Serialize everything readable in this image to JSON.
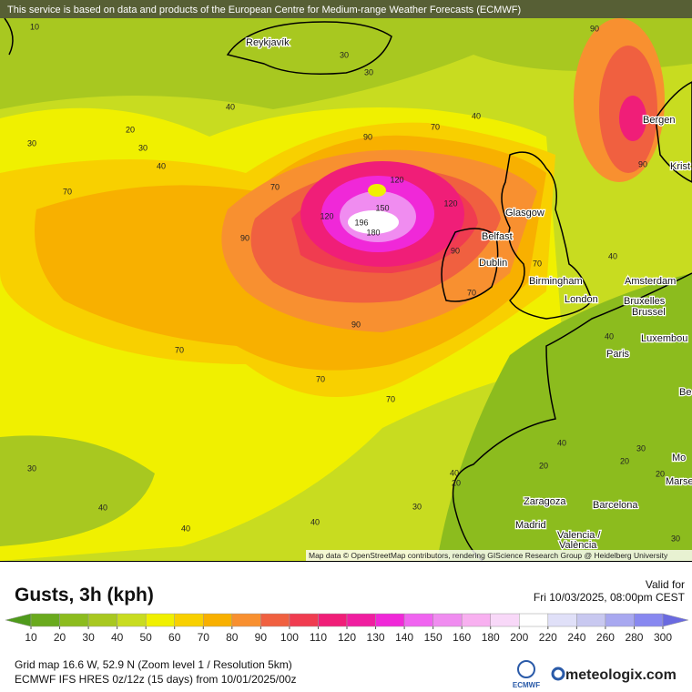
{
  "header": {
    "notice": "This service is based on data and products of the European Centre for Medium-range Weather Forecasts (ECMWF)"
  },
  "map": {
    "cities": [
      "Reykjavík",
      "Bergen",
      "Krist",
      "Glasgow",
      "Belfast",
      "Dublin",
      "Birmingham",
      "London",
      "Amsterdam",
      "Bruxelles",
      "Brussel",
      "Paris",
      "Luxembou",
      "Be",
      "Mo",
      "Marse",
      "Zaragoza",
      "Barcelona",
      "Madrid",
      "Valencia /",
      "València"
    ],
    "contour_labels": [
      10,
      20,
      30,
      30,
      40,
      40,
      30,
      30,
      40,
      70,
      90,
      70,
      70,
      120,
      150,
      120,
      120,
      196,
      180,
      90,
      90,
      90,
      90,
      70,
      70,
      90,
      40,
      70,
      70,
      70,
      40,
      20,
      30,
      20,
      20,
      30,
      40,
      30,
      40,
      40,
      40,
      20,
      30,
      40
    ],
    "attribution": "Map data © OpenStreetMap contributors, rendering GIScience Research Group @ Heidelberg University"
  },
  "legend": {
    "title": "Gusts, 3h (kph)",
    "valid_label": "Valid for",
    "valid_time": "Fri 10/03/2025, 08:00pm CEST",
    "ticks": [
      10,
      20,
      30,
      40,
      50,
      60,
      70,
      80,
      90,
      100,
      110,
      120,
      130,
      140,
      150,
      160,
      180,
      200,
      220,
      240,
      260,
      280,
      300
    ],
    "colors": [
      "#4f9a1c",
      "#6aaa1e",
      "#8cbc1e",
      "#a8c820",
      "#c8dc20",
      "#f0f000",
      "#f8d000",
      "#f8b000",
      "#f89030",
      "#f06040",
      "#f03c50",
      "#f01e78",
      "#f01ea0",
      "#f028d8",
      "#f064f0",
      "#f08cf0",
      "#f8b0f0",
      "#f8d8f8",
      "#ffffff",
      "#e0e0f8",
      "#c8c8f0",
      "#a8a8f0",
      "#8888f0",
      "#6a6ae0"
    ]
  },
  "footer": {
    "grid": "Grid map 16.6 W, 52.9 N (Zoom level 1 / Resolution 5km)",
    "model": "ECMWF IFS HRES 0z/12z (15 days) from 10/01/2025/00z",
    "ecmwf": "ECMWF",
    "brand": "meteologix.com"
  }
}
